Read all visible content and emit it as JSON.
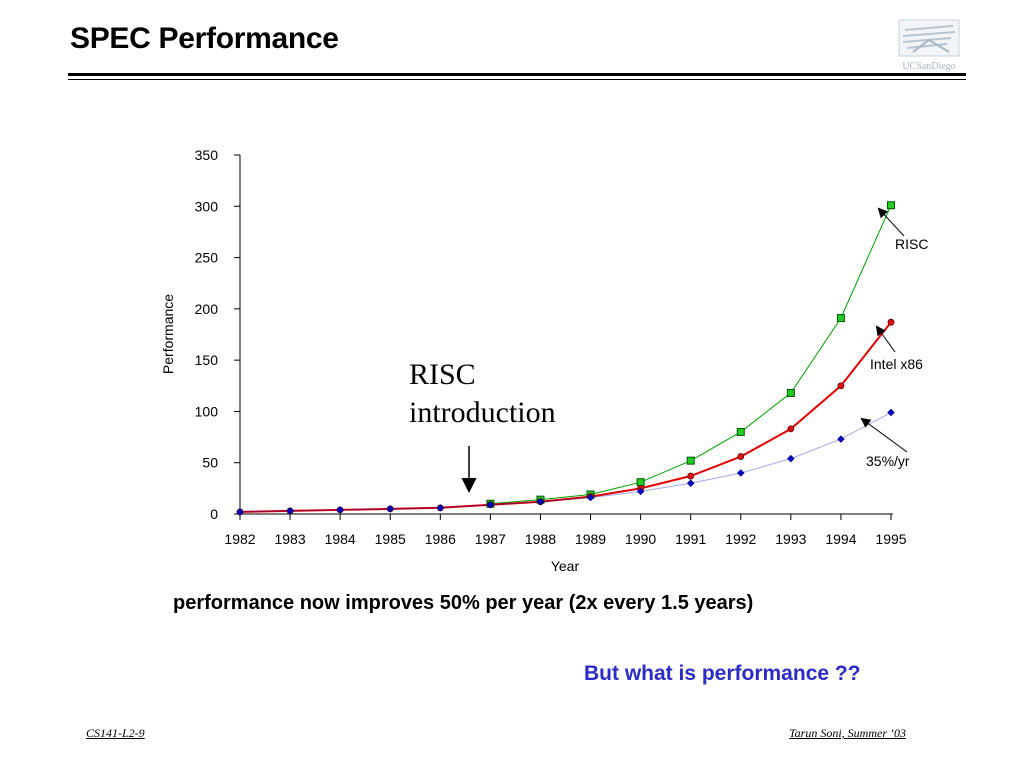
{
  "slide": {
    "title": "SPEC Performance",
    "logo_text": "UCSanDiego",
    "annotation": "RISC\nintroduction",
    "headline": "performance now improves  50% per year (2x every 1.5 years)",
    "question": "But what is performance ??",
    "footer_left": "CS141-L2-9",
    "footer_right": "Tarun Soni, Summer ‘03"
  },
  "colors": {
    "risc": "#00a000",
    "intel": "#e00000",
    "trend": "#0000c0",
    "question": "#2b2bc7"
  },
  "chart_data": {
    "type": "line",
    "xlabel": "Year",
    "ylabel": "Performance",
    "x": [
      "1982",
      "1983",
      "1984",
      "1985",
      "1986",
      "1987",
      "1988",
      "1989",
      "1990",
      "1991",
      "1992",
      "1993",
      "1994",
      "1995"
    ],
    "yticks": [
      0,
      50,
      100,
      150,
      200,
      250,
      300,
      350
    ],
    "ylim": [
      0,
      350
    ],
    "grid": false,
    "series": [
      {
        "name": "RISC",
        "marker": "square",
        "values": [
          null,
          null,
          null,
          null,
          null,
          10,
          14,
          19,
          31,
          52,
          80,
          118,
          191,
          301
        ]
      },
      {
        "name": "Intel x86",
        "marker": "circle",
        "values": [
          2,
          3,
          4,
          5,
          6,
          9,
          12,
          17,
          25,
          37,
          56,
          83,
          125,
          187
        ]
      },
      {
        "name": "35%/yr",
        "marker": "diamond",
        "values": [
          2,
          3,
          4,
          5,
          6,
          9,
          12,
          16,
          22,
          30,
          40,
          54,
          73,
          99
        ]
      }
    ],
    "annotations": [
      "RISC introduction"
    ]
  }
}
